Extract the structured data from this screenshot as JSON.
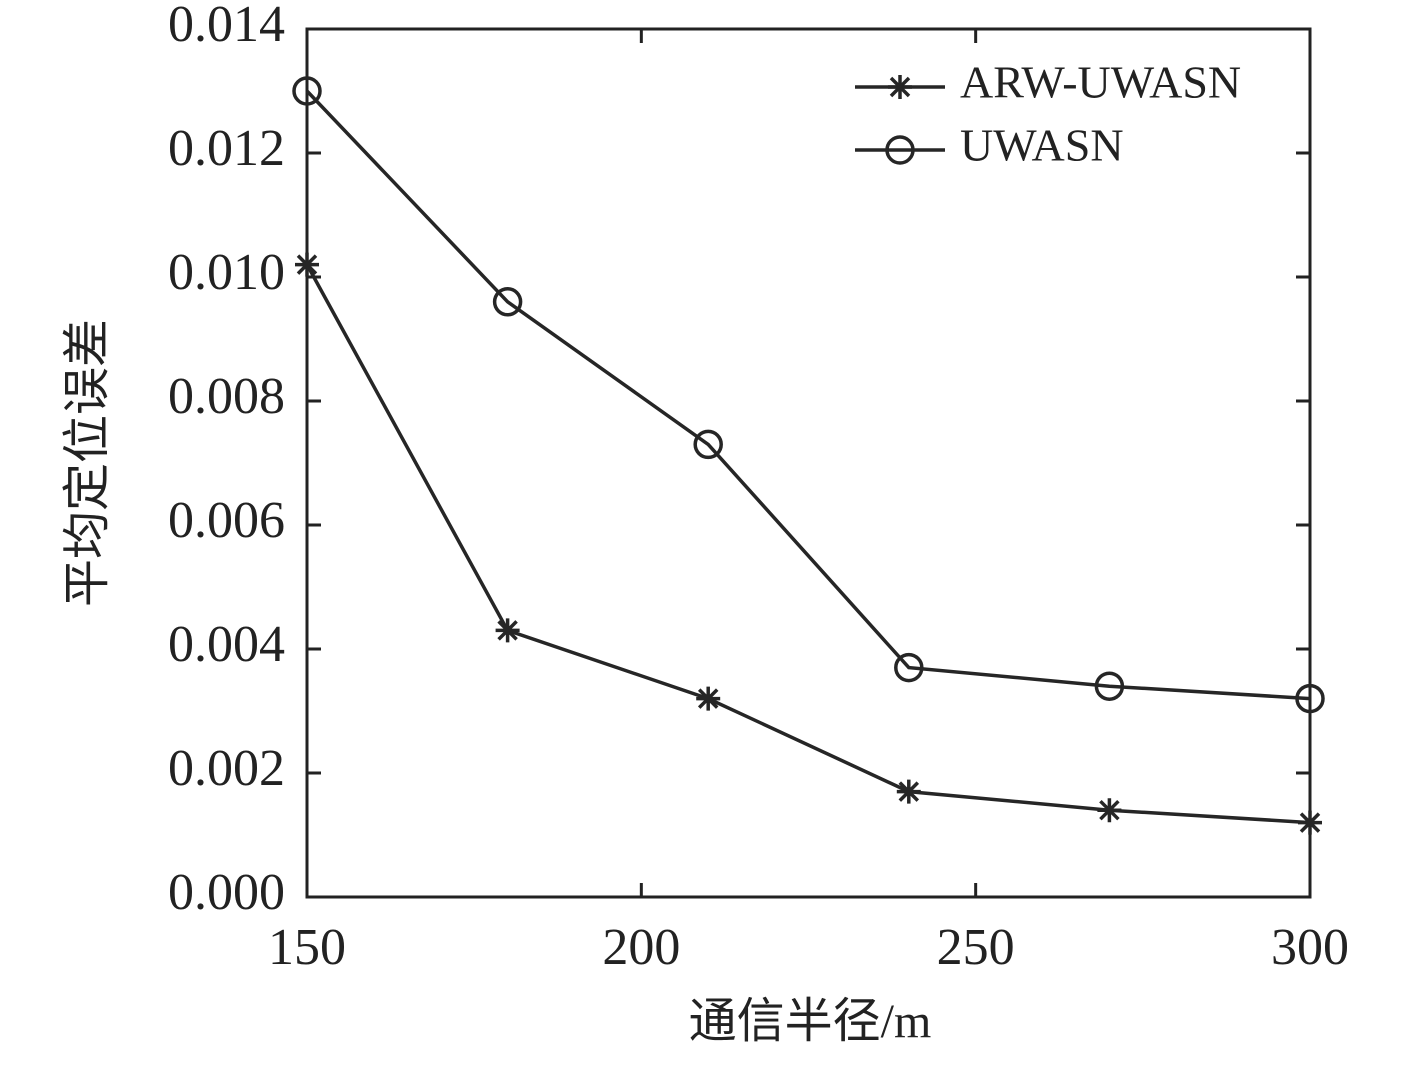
{
  "chart_data": {
    "type": "line",
    "xlabel": "通信半径/m",
    "ylabel": "平均定位误差",
    "x": [
      150,
      180,
      210,
      240,
      270,
      300
    ],
    "series": [
      {
        "name": "ARW-UWASN",
        "color": "#262626",
        "marker": "star",
        "values": [
          0.0102,
          0.0043,
          0.0032,
          0.0017,
          0.0014,
          0.0012
        ]
      },
      {
        "name": "UWASN",
        "color": "#262626",
        "marker": "circle",
        "values": [
          0.013,
          0.0096,
          0.0073,
          0.0037,
          0.0034,
          0.0032
        ]
      }
    ],
    "xlim": [
      150,
      300
    ],
    "xticks": [
      150,
      200,
      250,
      300
    ],
    "ylim": [
      0,
      0.014
    ],
    "yticks": [
      {
        "value": 0,
        "label": "0.000"
      },
      {
        "value": 0.002,
        "label": "0.002"
      },
      {
        "value": 0.004,
        "label": "0.004"
      },
      {
        "value": 0.006,
        "label": "0.006"
      },
      {
        "value": 0.008,
        "label": "0.008"
      },
      {
        "value": 0.01,
        "label": "0.010"
      },
      {
        "value": 0.012,
        "label": "0.012"
      },
      {
        "value": 0.014,
        "label": "0.014"
      }
    ],
    "legend": "upper-right",
    "grid": false
  }
}
